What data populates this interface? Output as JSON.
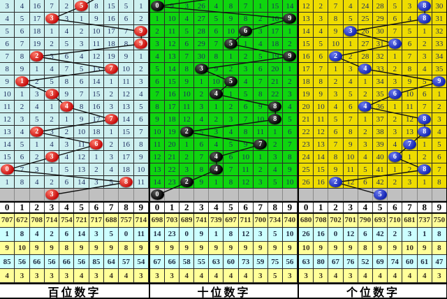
{
  "colors": {
    "panel_hundreds_bg": "#cdf0f0",
    "panel_tens_bg": "#0fd50f",
    "panel_units_bg": "#eedc00",
    "gray_row_bg": "#c0c0c0",
    "stat_yellow_bg": "#ffff99",
    "stat_cyan_bg": "#ccffff",
    "ball_red": "#d51e1e",
    "ball_black": "#0a0a0a",
    "ball_blue": "#2134c8",
    "trend_line": "#111111"
  },
  "chart_data": {
    "type": "table",
    "title": "3D lottery digit trend chart (hundreds / tens / units positions)",
    "digit_header": [
      "0",
      "1",
      "2",
      "3",
      "4",
      "5",
      "6",
      "7",
      "8",
      "9"
    ],
    "panels": [
      {
        "id": "hundreds",
        "footer_label": "百位数字",
        "grid_bg": "#cdf0f0",
        "ball_color": "#d51e1e",
        "prev_exit_col": 6.6,
        "rows": [
          {
            "cells": [
              "3",
              "4",
              "16",
              "7",
              "2",
              "5",
              "8",
              "15",
              "5",
              "1"
            ],
            "ball": 5
          },
          {
            "cells": [
              "4",
              "5",
              "17",
              "3",
              "3",
              "1",
              "9",
              "16",
              "6",
              "2"
            ],
            "ball": 3
          },
          {
            "cells": [
              "5",
              "6",
              "18",
              "1",
              "4",
              "2",
              "10",
              "17",
              "7",
              "9"
            ],
            "ball": 9
          },
          {
            "cells": [
              "6",
              "7",
              "19",
              "2",
              "5",
              "3",
              "11",
              "18",
              "8",
              "9"
            ],
            "ball": 9
          },
          {
            "cells": [
              "7",
              "8",
              "2",
              "3",
              "6",
              "4",
              "12",
              "19",
              "9",
              "1"
            ],
            "ball": 2
          },
          {
            "cells": [
              "8",
              "9",
              "1",
              "4",
              "7",
              "5",
              "13",
              "7",
              "10",
              "2"
            ],
            "ball": 7
          },
          {
            "cells": [
              "9",
              "1",
              "2",
              "5",
              "8",
              "6",
              "14",
              "1",
              "11",
              "3"
            ],
            "ball": 1
          },
          {
            "cells": [
              "10",
              "1",
              "3",
              "3",
              "9",
              "7",
              "15",
              "2",
              "12",
              "4"
            ],
            "ball": 3
          },
          {
            "cells": [
              "11",
              "2",
              "4",
              "1",
              "4",
              "8",
              "16",
              "3",
              "13",
              "5"
            ],
            "ball": 4
          },
          {
            "cells": [
              "12",
              "3",
              "5",
              "2",
              "1",
              "9",
              "17",
              "7",
              "14",
              "6"
            ],
            "ball": 7
          },
          {
            "cells": [
              "13",
              "4",
              "2",
              "3",
              "2",
              "10",
              "18",
              "1",
              "15",
              "7"
            ],
            "ball": 2
          },
          {
            "cells": [
              "14",
              "5",
              "1",
              "4",
              "3",
              "11",
              "6",
              "2",
              "16",
              "8"
            ],
            "ball": 6
          },
          {
            "cells": [
              "15",
              "6",
              "2",
              "3",
              "4",
              "12",
              "1",
              "3",
              "17",
              "9"
            ],
            "ball": 3
          },
          {
            "cells": [
              "0",
              "7",
              "3",
              "1",
              "5",
              "13",
              "2",
              "4",
              "18",
              "10"
            ],
            "ball": 0
          },
          {
            "cells": [
              "1",
              "8",
              "4",
              "2",
              "6",
              "14",
              "3",
              "5",
              "8",
              "11"
            ],
            "ball": 8
          }
        ],
        "tail_ball": {
          "col": 3,
          "label": "3"
        },
        "stats": [
          {
            "bg": "y",
            "values": [
              "707",
              "672",
              "708",
              "714",
              "754",
              "721",
              "717",
              "688",
              "757",
              "714"
            ]
          },
          {
            "bg": "c",
            "values": [
              "1",
              "8",
              "4",
              "2",
              "6",
              "14",
              "3",
              "5",
              "0",
              "11"
            ]
          },
          {
            "bg": "y",
            "values": [
              "9",
              "10",
              "9",
              "9",
              "8",
              "9",
              "9",
              "9",
              "8",
              "9"
            ]
          },
          {
            "bg": "c",
            "values": [
              "85",
              "56",
              "66",
              "56",
              "66",
              "56",
              "85",
              "64",
              "57",
              "54"
            ]
          },
          {
            "bg": "y",
            "values": [
              "4",
              "3",
              "3",
              "3",
              "3",
              "4",
              "3",
              "4",
              "4",
              "3"
            ]
          }
        ]
      },
      {
        "id": "tens",
        "footer_label": "十位数字",
        "grid_bg": "#0fd50f",
        "ball_color": "#0a0a0a",
        "prev_exit_col": 5.0,
        "rows": [
          {
            "cells": [
              "0",
              "9",
              "3",
              "26",
              "4",
              "8",
              "7",
              "1",
              "15",
              "14"
            ],
            "ball": 0
          },
          {
            "cells": [
              "1",
              "10",
              "4",
              "27",
              "5",
              "9",
              "8",
              "2",
              "16",
              "9"
            ],
            "ball": 9
          },
          {
            "cells": [
              "2",
              "11",
              "5",
              "28",
              "6",
              "10",
              "6",
              "3",
              "17",
              "1"
            ],
            "ball": 6
          },
          {
            "cells": [
              "3",
              "12",
              "6",
              "29",
              "7",
              "5",
              "1",
              "4",
              "18",
              "2"
            ],
            "ball": 5
          },
          {
            "cells": [
              "4",
              "13",
              "7",
              "30",
              "8",
              "1",
              "2",
              "5",
              "19",
              "9"
            ],
            "ball": 9
          },
          {
            "cells": [
              "5",
              "14",
              "8",
              "3",
              "9",
              "2",
              "3",
              "6",
              "20",
              "1"
            ],
            "ball": 3
          },
          {
            "cells": [
              "6",
              "15",
              "9",
              "1",
              "10",
              "5",
              "4",
              "7",
              "21",
              "2"
            ],
            "ball": 5
          },
          {
            "cells": [
              "7",
              "16",
              "10",
              "2",
              "4",
              "1",
              "5",
              "8",
              "22",
              "3"
            ],
            "ball": 4
          },
          {
            "cells": [
              "8",
              "17",
              "11",
              "3",
              "1",
              "2",
              "6",
              "9",
              "8",
              "4"
            ],
            "ball": 8
          },
          {
            "cells": [
              "9",
              "18",
              "12",
              "4",
              "2",
              "3",
              "7",
              "10",
              "8",
              "5"
            ],
            "ball": 8
          },
          {
            "cells": [
              "10",
              "19",
              "2",
              "5",
              "3",
              "4",
              "8",
              "11",
              "1",
              "6"
            ],
            "ball": 2
          },
          {
            "cells": [
              "11",
              "20",
              "1",
              "6",
              "4",
              "5",
              "9",
              "7",
              "2",
              "7"
            ],
            "ball": 7
          },
          {
            "cells": [
              "12",
              "21",
              "2",
              "7",
              "4",
              "6",
              "10",
              "1",
              "3",
              "8"
            ],
            "ball": 4
          },
          {
            "cells": [
              "13",
              "22",
              "3",
              "8",
              "4",
              "7",
              "11",
              "2",
              "4",
              "9"
            ],
            "ball": 4
          },
          {
            "cells": [
              "14",
              "23",
              "2",
              "9",
              "1",
              "8",
              "12",
              "3",
              "5",
              "10"
            ],
            "ball": 2
          }
        ],
        "tail_ball": {
          "col": 0,
          "label": "0"
        },
        "stats": [
          {
            "bg": "y",
            "values": [
              "698",
              "703",
              "689",
              "741",
              "739",
              "697",
              "711",
              "700",
              "734",
              "740"
            ]
          },
          {
            "bg": "c",
            "values": [
              "14",
              "23",
              "0",
              "9",
              "1",
              "8",
              "12",
              "3",
              "5",
              "10"
            ]
          },
          {
            "bg": "y",
            "values": [
              "9",
              "9",
              "9",
              "9",
              "9",
              "9",
              "9",
              "9",
              "9",
              "9"
            ]
          },
          {
            "bg": "c",
            "values": [
              "67",
              "66",
              "58",
              "55",
              "63",
              "60",
              "73",
              "59",
              "75",
              "56"
            ]
          },
          {
            "bg": "y",
            "values": [
              "3",
              "3",
              "4",
              "4",
              "4",
              "4",
              "4",
              "3",
              "5",
              "3"
            ]
          }
        ]
      },
      {
        "id": "units",
        "footer_label": "个位数字",
        "grid_bg": "#eedc00",
        "ball_color": "#2134c8",
        "prev_exit_col": null,
        "rows": [
          {
            "cells": [
              "12",
              "2",
              "7",
              "4",
              "24",
              "28",
              "5",
              "3",
              "8",
              "30"
            ],
            "ball": 8
          },
          {
            "cells": [
              "13",
              "3",
              "8",
              "5",
              "25",
              "29",
              "6",
              "4",
              "8",
              "31"
            ],
            "ball": 8
          },
          {
            "cells": [
              "14",
              "4",
              "9",
              "3",
              "26",
              "30",
              "7",
              "5",
              "1",
              "32"
            ],
            "ball": 3
          },
          {
            "cells": [
              "15",
              "5",
              "10",
              "1",
              "27",
              "31",
              "6",
              "6",
              "2",
              "33"
            ],
            "ball": 6
          },
          {
            "cells": [
              "16",
              "6",
              "2",
              "2",
              "28",
              "32",
              "1",
              "7",
              "3",
              "34"
            ],
            "ball": 2
          },
          {
            "cells": [
              "17",
              "7",
              "1",
              "3",
              "4",
              "33",
              "2",
              "8",
              "4",
              "35"
            ],
            "ball": 4
          },
          {
            "cells": [
              "18",
              "8",
              "2",
              "4",
              "1",
              "34",
              "3",
              "9",
              "5",
              "9"
            ],
            "ball": 9
          },
          {
            "cells": [
              "19",
              "9",
              "3",
              "5",
              "2",
              "35",
              "6",
              "10",
              "6",
              "1"
            ],
            "ball": 6
          },
          {
            "cells": [
              "20",
              "10",
              "4",
              "6",
              "4",
              "36",
              "1",
              "11",
              "7",
              "2"
            ],
            "ball": 4
          },
          {
            "cells": [
              "21",
              "11",
              "5",
              "7",
              "1",
              "37",
              "2",
              "12",
              "8",
              "3"
            ],
            "ball": 8
          },
          {
            "cells": [
              "22",
              "12",
              "6",
              "8",
              "2",
              "38",
              "3",
              "13",
              "8",
              "4"
            ],
            "ball": 8
          },
          {
            "cells": [
              "23",
              "13",
              "7",
              "9",
              "3",
              "39",
              "4",
              "7",
              "1",
              "5"
            ],
            "ball": 7
          },
          {
            "cells": [
              "24",
              "14",
              "8",
              "10",
              "4",
              "40",
              "6",
              "1",
              "2",
              "6"
            ],
            "ball": 6
          },
          {
            "cells": [
              "25",
              "15",
              "9",
              "11",
              "5",
              "41",
              "1",
              "2",
              "8",
              "7"
            ],
            "ball": 8
          },
          {
            "cells": [
              "26",
              "16",
              "2",
              "12",
              "6",
              "42",
              "2",
              "3",
              "1",
              "8"
            ],
            "ball": 2
          }
        ],
        "tail_ball": {
          "col": 5,
          "label": "5"
        },
        "stats": [
          {
            "bg": "y",
            "values": [
              "680",
              "708",
              "702",
              "701",
              "790",
              "693",
              "710",
              "681",
              "737",
              "750"
            ]
          },
          {
            "bg": "c",
            "values": [
              "26",
              "16",
              "0",
              "12",
              "6",
              "42",
              "2",
              "3",
              "1",
              "8"
            ]
          },
          {
            "bg": "y",
            "values": [
              "10",
              "9",
              "9",
              "9",
              "8",
              "9",
              "9",
              "10",
              "9",
              "8"
            ]
          },
          {
            "bg": "c",
            "values": [
              "63",
              "80",
              "67",
              "76",
              "52",
              "69",
              "74",
              "60",
              "61",
              "47"
            ]
          },
          {
            "bg": "y",
            "values": [
              "3",
              "3",
              "4",
              "3",
              "4",
              "4",
              "4",
              "4",
              "4",
              "3"
            ]
          }
        ]
      }
    ]
  }
}
